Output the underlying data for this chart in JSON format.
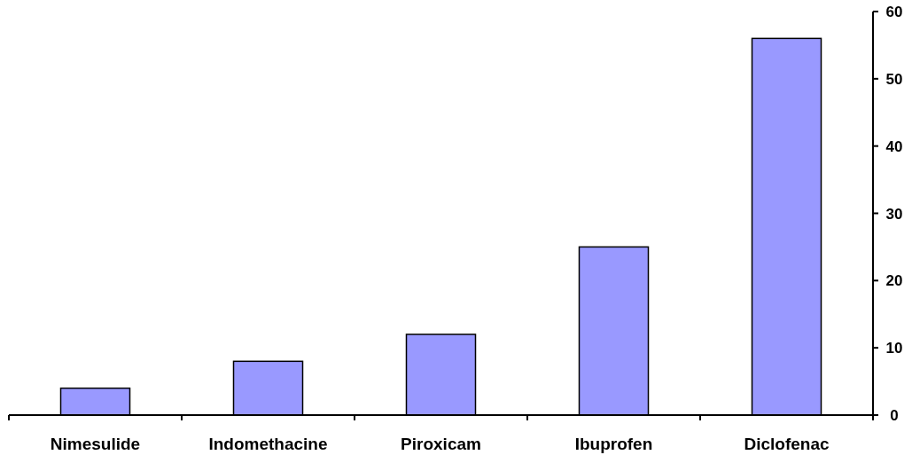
{
  "chart_data": {
    "type": "bar",
    "categories": [
      "Nimesulide",
      "Indomethacine",
      "Piroxicam",
      "Ibuprofen",
      "Diclofenac"
    ],
    "values": [
      4,
      8,
      12,
      25,
      56
    ],
    "color": "#9999ff",
    "ylim": [
      0,
      60
    ],
    "yticks": [
      0,
      10,
      20,
      30,
      40,
      50,
      60
    ],
    "grid": false
  }
}
